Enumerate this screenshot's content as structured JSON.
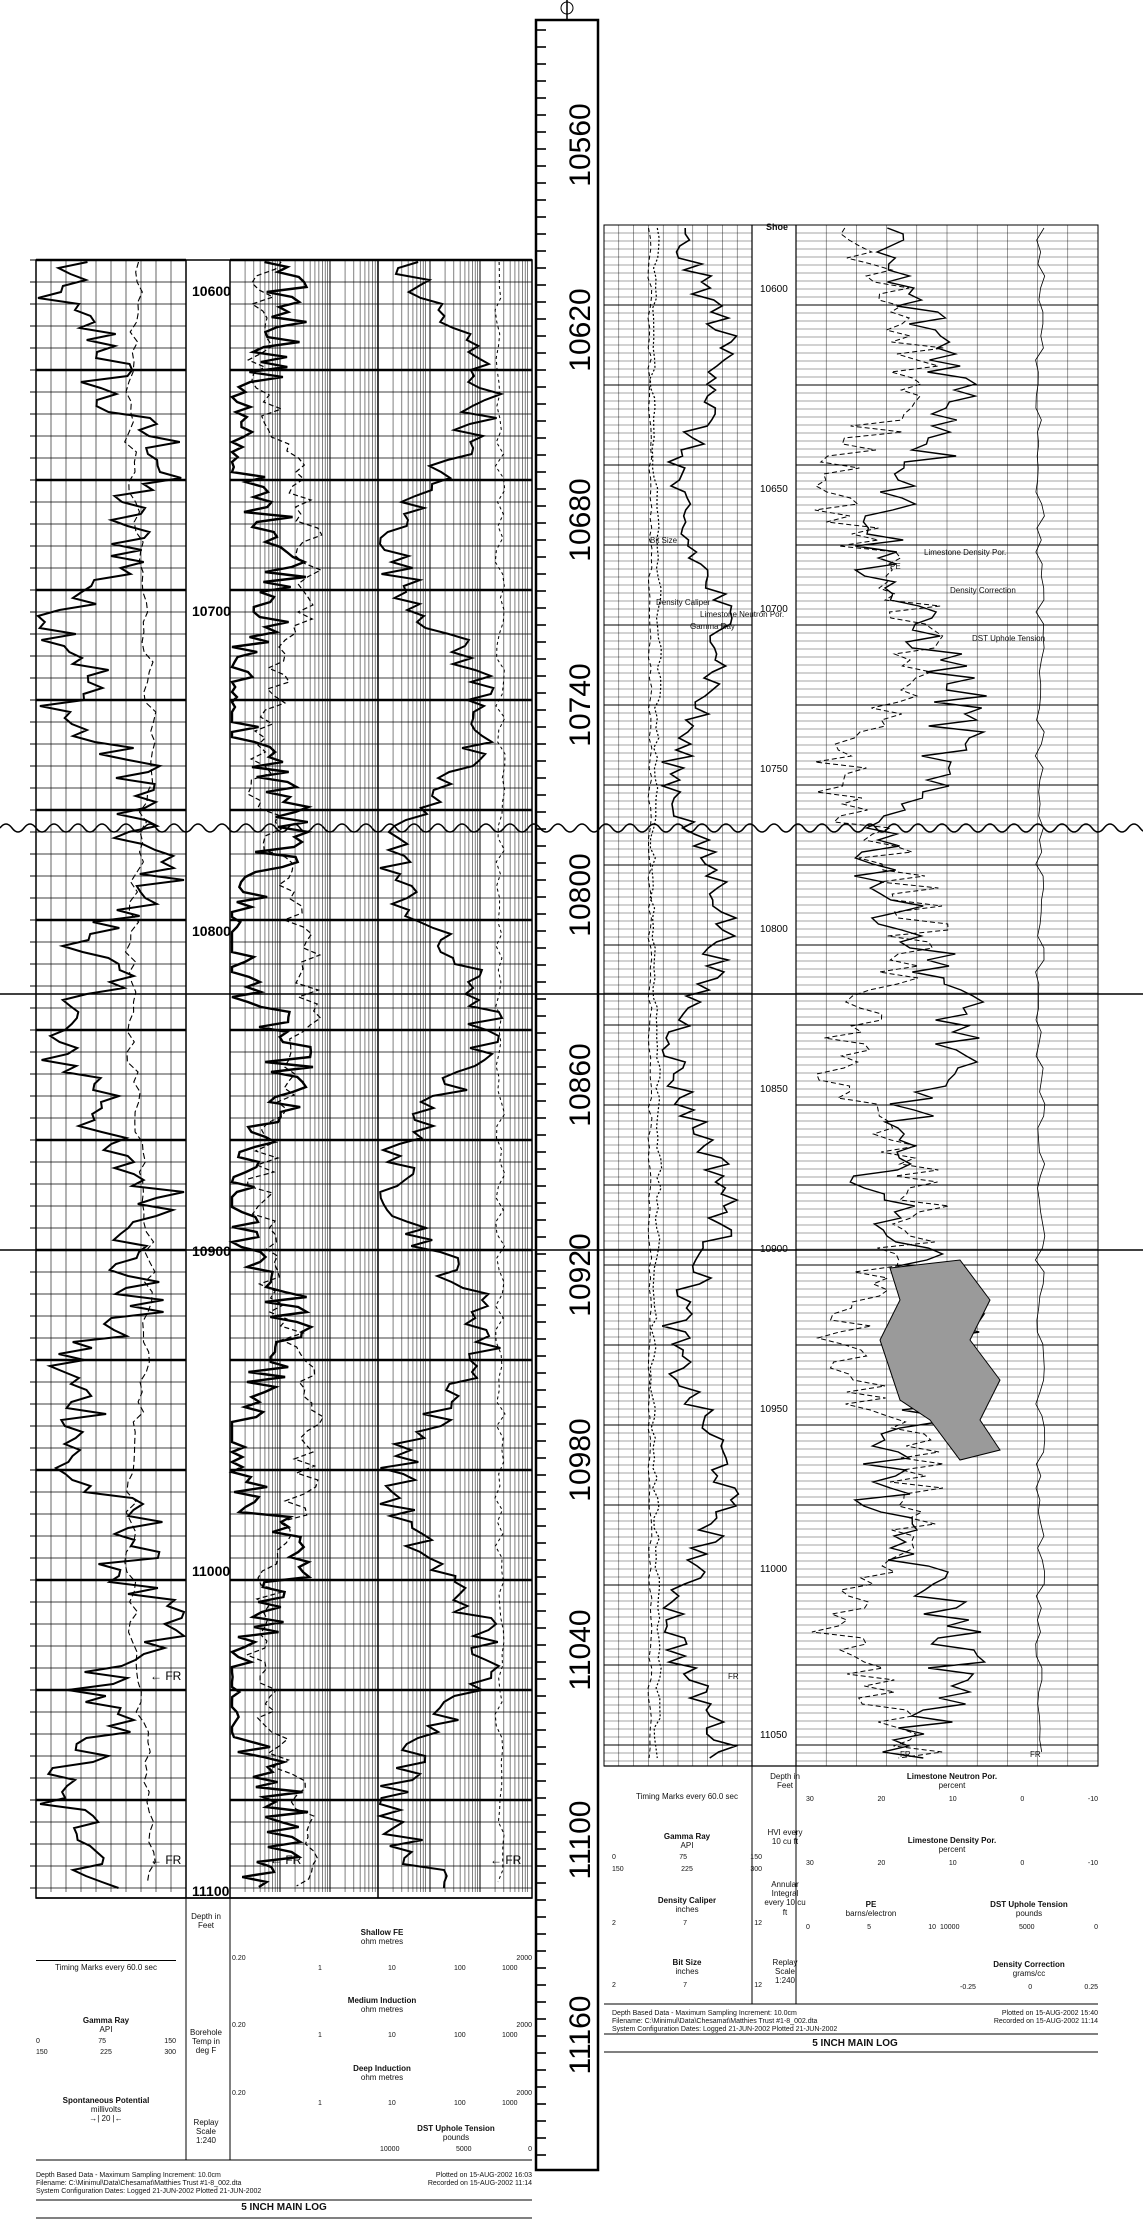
{
  "center_scale": {
    "depth_labels": [
      "10560",
      "10620",
      "10680",
      "10740",
      "10800",
      "10860",
      "10920",
      "10980",
      "11040",
      "11100",
      "11160"
    ]
  },
  "left_log": {
    "depth_labels": [
      "10600",
      "10700",
      "10800",
      "10900",
      "11000",
      "11100"
    ],
    "fr_marks": [
      "FR",
      "FR",
      "FR",
      "FR"
    ],
    "header": {
      "timing": "Timing Marks every 60.0 sec",
      "depth_title": "Depth in Feet",
      "temp_title": "Borehole Temp in deg F",
      "replay_title": "Replay Scale 1:240",
      "gamma_ray": {
        "name": "Gamma Ray",
        "unit": "API",
        "scale1": [
          "0",
          "75",
          "150"
        ],
        "scale2": [
          "150",
          "225",
          "300"
        ]
      },
      "sp": {
        "name": "Spontaneous Potential",
        "unit": "millivolts",
        "scale": "→| 20 |←"
      },
      "shallow_fe": {
        "name": "Shallow FE",
        "unit": "ohm metres",
        "scale": [
          "0.20",
          "1",
          "10",
          "100",
          "1000",
          "2000"
        ]
      },
      "medium_ind": {
        "name": "Medium Induction",
        "unit": "ohm metres",
        "scale": [
          "0.20",
          "1",
          "10",
          "100",
          "1000",
          "2000"
        ]
      },
      "deep_ind": {
        "name": "Deep Induction",
        "unit": "ohm metres",
        "scale": [
          "0.20",
          "1",
          "10",
          "100",
          "1000",
          "2000"
        ]
      },
      "tension": {
        "name": "DST Uphole Tension",
        "unit": "pounds",
        "scale": [
          "10000",
          "5000",
          "0"
        ]
      },
      "footer_left": "Depth Based Data - Maximum Sampling Increment: 10.0cm",
      "footer_file": "Filename: C:\\Minimul\\Data\\Chesamat\\Matthies Trust #1-8_002.dta",
      "footer_config": "System Configuration Dates:   Logged  21-JUN-2002   Plotted  21-JUN-2002",
      "footer_plotted": "Plotted on 15-AUG-2002 16:03",
      "footer_recorded": "Recorded on 15-AUG-2002 11:14",
      "log_name": "5 INCH MAIN LOG"
    }
  },
  "right_log": {
    "shoe_label": "Shoe",
    "depth_labels": [
      "10600",
      "10650",
      "10700",
      "10750",
      "10800",
      "10850",
      "10900",
      "10950",
      "11000",
      "11050"
    ],
    "curve_labels": {
      "bit_size": "Bit Size",
      "density_caliper": "Density Caliper",
      "limestone_neutron": "Limestone Neutron Por.",
      "gamma_ray": "Gamma Ray",
      "pe": "PE",
      "limestone_density": "Limestone Density Por.",
      "density_correction": "Density Correction",
      "dst_tension": "DST Uphole Tension",
      "fr": "FR",
      "fr2": "FR",
      "fr3": "FR"
    },
    "header": {
      "timing": "Timing Marks every 60.0 sec",
      "depth_title": "Depth in Feet",
      "hvi": "HVI every 10 cu ft",
      "annular": "Annular Integral every 10 cu ft",
      "replay": "Replay Scale 1:240",
      "gamma_ray": {
        "name": "Gamma Ray",
        "unit": "API",
        "scale1": [
          "0",
          "75",
          "150"
        ],
        "scale2": [
          "150",
          "225",
          "300"
        ]
      },
      "density_caliper": {
        "name": "Density Caliper",
        "unit": "inches",
        "scale": [
          "2",
          "7",
          "12"
        ]
      },
      "bit_size": {
        "name": "Bit Size",
        "unit": "inches",
        "scale": [
          "2",
          "7",
          "12"
        ]
      },
      "neutron": {
        "name": "Limestone Neutron Por.",
        "unit": "percent",
        "scale": [
          "30",
          "20",
          "10",
          "0",
          "-10"
        ]
      },
      "density": {
        "name": "Limestone Density Por.",
        "unit": "percent",
        "scale": [
          "30",
          "20",
          "10",
          "0",
          "-10"
        ]
      },
      "pe": {
        "name": "PE",
        "unit": "barns/electron",
        "scale": [
          "0",
          "5",
          "10"
        ]
      },
      "tension": {
        "name": "DST Uphole Tension",
        "unit": "pounds",
        "scale": [
          "10000",
          "5000",
          "0"
        ]
      },
      "density_corr": {
        "name": "Density Correction",
        "unit": "grams/cc",
        "scale": [
          "-0.25",
          "0",
          "0.25"
        ]
      },
      "footer_left": "Depth Based Data - Maximum Sampling Increment: 10.0cm",
      "footer_file": "Filename: C:\\Minimul\\Data\\Chesamat\\Matthies Trust #1-8_002.dta",
      "footer_config": "System Configuration Dates:   Logged  21-JUN-2002   Plotted  21-JUN-2002",
      "footer_plotted": "Plotted on 15-AUG-2002 15:40",
      "footer_recorded": "Recorded on 15-AUG-2002 11:14",
      "log_name": "5 INCH MAIN LOG"
    }
  }
}
